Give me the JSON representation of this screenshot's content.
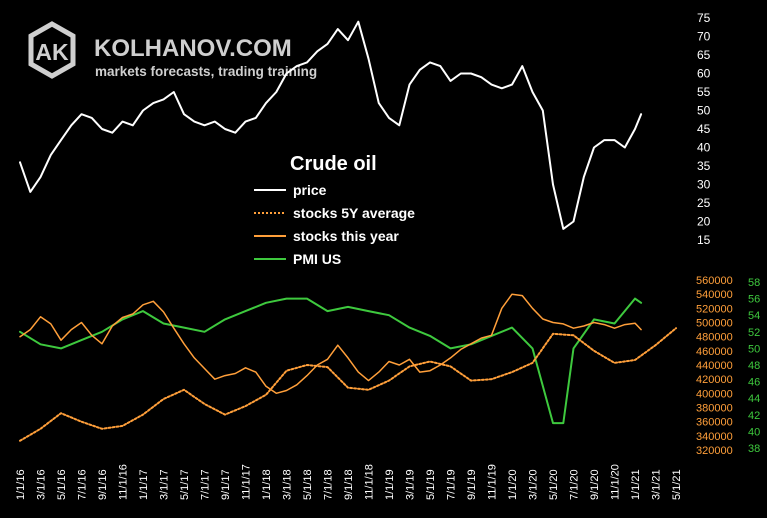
{
  "brand": {
    "logo_letters": "AK",
    "name": "KOLHANOV.COM",
    "tagline": "markets forecasts, trading training"
  },
  "colors": {
    "background": "#000000",
    "price": "#ffffff",
    "stocks_5y": "#ff9f3a",
    "stocks_this_year": "#ff9f3a",
    "pmi": "#3ec93e",
    "axis_text_white": "#ffffff",
    "axis_text_orange": "#ff9f3a",
    "axis_text_green": "#3ec93e"
  },
  "chart_data": {
    "type": "line",
    "title": "Crude oil",
    "legend_position": "center",
    "legend": [
      {
        "key": "price",
        "label": "price",
        "style": "solid-white"
      },
      {
        "key": "stocks_5y",
        "label": "stocks 5Y average",
        "style": "dotted-orange"
      },
      {
        "key": "stocks_this_year",
        "label": "stocks this year",
        "style": "solid-orange"
      },
      {
        "key": "pmi",
        "label": "PMI US",
        "style": "solid-green"
      }
    ],
    "x_ticks": [
      "1/1/16",
      "3/1/16",
      "5/1/16",
      "7/1/16",
      "9/1/16",
      "11/1/16",
      "1/1/17",
      "3/1/17",
      "5/1/17",
      "7/1/17",
      "9/1/17",
      "11/1/17",
      "1/1/18",
      "3/1/18",
      "5/1/18",
      "7/1/18",
      "9/1/18",
      "11/1/18",
      "1/1/19",
      "3/1/19",
      "5/1/19",
      "7/1/19",
      "9/1/19",
      "11/1/19",
      "1/1/20",
      "3/1/20",
      "5/1/20",
      "7/1/20",
      "9/1/20",
      "11/1/20",
      "1/1/21",
      "3/1/21",
      "5/1/21"
    ],
    "axes": {
      "price": {
        "ticks": [
          15,
          20,
          25,
          30,
          35,
          40,
          45,
          50,
          55,
          60,
          65,
          70,
          75
        ],
        "ylim": [
          15,
          75
        ]
      },
      "stocks": {
        "ticks": [
          320000,
          340000,
          360000,
          380000,
          400000,
          420000,
          440000,
          460000,
          480000,
          500000,
          520000,
          540000,
          560000
        ],
        "ylim": [
          320000,
          560000
        ]
      },
      "pmi": {
        "ticks": [
          38,
          40,
          42,
          44,
          46,
          48,
          50,
          52,
          54,
          56,
          58
        ],
        "ylim": [
          38,
          58
        ]
      }
    },
    "series": {
      "price": {
        "t": [
          0,
          0.5,
          1,
          1.5,
          2,
          2.5,
          3,
          3.5,
          4,
          4.5,
          5,
          5.5,
          6,
          6.5,
          7,
          7.5,
          8,
          8.5,
          9,
          9.5,
          10,
          10.5,
          11,
          11.5,
          12,
          12.5,
          13,
          13.5,
          14,
          14.5,
          15,
          15.5,
          16,
          16.5,
          17,
          17.5,
          18,
          18.5,
          19,
          19.5,
          20,
          20.5,
          21,
          21.5,
          22,
          22.5,
          23,
          23.5,
          24,
          24.5,
          25,
          25.5,
          26,
          26.5,
          27,
          27.5,
          28,
          28.5,
          29,
          29.5,
          30,
          30.3
        ],
        "y": [
          36,
          28,
          32,
          38,
          42,
          46,
          49,
          48,
          45,
          44,
          47,
          46,
          50,
          52,
          53,
          55,
          49,
          47,
          46,
          47,
          45,
          44,
          47,
          48,
          52,
          55,
          60,
          62,
          63,
          66,
          68,
          72,
          69,
          74,
          64,
          52,
          48,
          46,
          57,
          61,
          63,
          62,
          58,
          60,
          60,
          59,
          57,
          56,
          57,
          62,
          55,
          50,
          30,
          18,
          20,
          32,
          40,
          42,
          42,
          40,
          45,
          49
        ]
      },
      "stocks_5y": {
        "t": [
          0,
          1,
          2,
          3,
          4,
          5,
          6,
          7,
          8,
          9,
          10,
          11,
          12,
          13,
          14,
          15,
          16,
          17,
          18,
          19,
          20,
          21,
          22,
          23,
          24,
          25,
          26,
          27,
          28,
          29,
          30,
          31,
          32
        ],
        "y": [
          333000,
          350000,
          372000,
          360000,
          350000,
          354000,
          370000,
          392000,
          405000,
          385000,
          370000,
          382000,
          398000,
          432000,
          440000,
          437000,
          408000,
          405000,
          418000,
          438000,
          445000,
          438000,
          418000,
          420000,
          430000,
          443000,
          484000,
          482000,
          460000,
          443000,
          447000,
          468000,
          492000
        ]
      },
      "stocks_this_year": {
        "t": [
          0,
          0.5,
          1,
          1.5,
          2,
          2.5,
          3,
          3.5,
          4,
          4.5,
          5,
          5.5,
          6,
          6.5,
          7,
          7.5,
          8,
          8.5,
          9,
          9.5,
          10,
          10.5,
          11,
          11.5,
          12,
          12.5,
          13,
          13.5,
          14,
          14.5,
          15,
          15.5,
          16,
          16.5,
          17,
          17.5,
          18,
          18.5,
          19,
          19.5,
          20,
          20.5,
          21,
          21.5,
          22,
          22.5,
          23,
          23.5,
          24,
          24.5,
          25,
          25.5,
          26,
          26.5,
          27,
          27.5,
          28,
          28.5,
          29,
          29.5,
          30,
          30.3
        ],
        "y": [
          480000,
          490000,
          508000,
          498000,
          475000,
          490000,
          500000,
          482000,
          470000,
          495000,
          507000,
          512000,
          525000,
          530000,
          515000,
          492000,
          470000,
          450000,
          435000,
          420000,
          425000,
          428000,
          436000,
          430000,
          410000,
          400000,
          404000,
          412000,
          425000,
          440000,
          448000,
          468000,
          450000,
          430000,
          418000,
          430000,
          445000,
          440000,
          448000,
          430000,
          432000,
          440000,
          450000,
          462000,
          470000,
          478000,
          482000,
          520000,
          540000,
          538000,
          520000,
          505000,
          500000,
          498000,
          492000,
          495000,
          500000,
          497000,
          492000,
          497000,
          499000,
          490000
        ]
      },
      "pmi": {
        "t": [
          0,
          1,
          2,
          3,
          4,
          5,
          6,
          7,
          8,
          9,
          10,
          11,
          12,
          13,
          14,
          15,
          16,
          17,
          18,
          19,
          20,
          21,
          22,
          23,
          24,
          25,
          26,
          26.5,
          27,
          28,
          29,
          30,
          30.3
        ],
        "y": [
          52,
          50.5,
          50,
          51,
          52,
          53.5,
          54.5,
          53,
          52.5,
          52,
          53.5,
          54.5,
          55.5,
          56,
          56,
          54.5,
          55,
          54.5,
          54,
          52.5,
          51.5,
          50,
          50.5,
          51.5,
          52.5,
          50,
          41,
          41,
          50,
          53.5,
          53,
          56,
          55.5
        ]
      }
    }
  }
}
